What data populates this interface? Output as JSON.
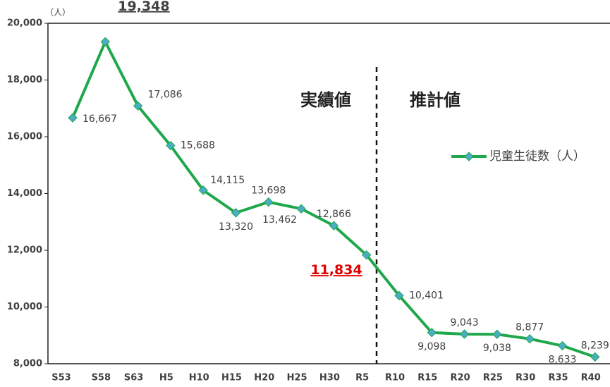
{
  "chart_data": {
    "type": "line",
    "y_unit_label": "（人）",
    "annotations": [
      "実績値",
      "推計値"
    ],
    "categories": [
      "S53",
      "S58",
      "S63",
      "H5",
      "H10",
      "H15",
      "H20",
      "H25",
      "H30",
      "R5",
      "R10",
      "R15",
      "R20",
      "R25",
      "R30",
      "R35",
      "R40"
    ],
    "series": [
      {
        "name": "児童生徒数（人）",
        "color": "#1fa84b",
        "marker_color": "#4bacc6",
        "values": [
          16667,
          19348,
          17086,
          15688,
          14115,
          13320,
          13698,
          13462,
          12866,
          11834,
          10401,
          9098,
          9043,
          9038,
          8877,
          8633,
          8239
        ],
        "value_labels": [
          "16,667",
          "19,348",
          "17,086",
          "15,688",
          "14,115",
          "13,320",
          "13,698",
          "13,462",
          "12,866",
          "11,834",
          "10,401",
          "9,098",
          "9,043",
          "9,038",
          "8,877",
          "8,633",
          "8,239"
        ]
      }
    ],
    "ylim": [
      8000,
      20000
    ],
    "yticks": [
      {
        "value": 8000,
        "label": "8,000"
      },
      {
        "value": 10000,
        "label": "10,000"
      },
      {
        "value": 12000,
        "label": "12,000"
      },
      {
        "value": 14000,
        "label": "14,000"
      },
      {
        "value": 16000,
        "label": "16,000"
      },
      {
        "value": 18000,
        "label": "18,000"
      },
      {
        "value": 20000,
        "label": "20,000"
      }
    ],
    "legend": "right"
  }
}
